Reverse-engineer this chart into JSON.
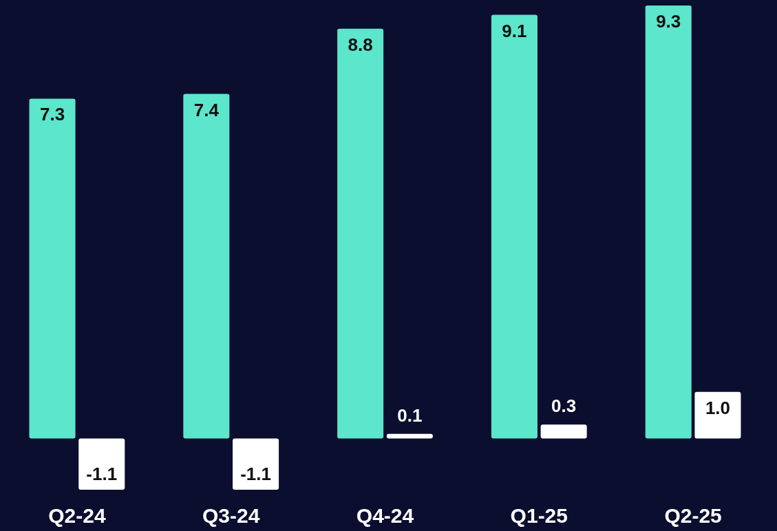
{
  "chart_data": {
    "type": "bar",
    "categories": [
      "Q2-24",
      "Q3-24",
      "Q4-24",
      "Q1-25",
      "Q2-25"
    ],
    "series": [
      {
        "color": "#5ce6cc",
        "values": [
          7.3,
          7.4,
          8.8,
          9.1,
          9.3
        ],
        "value_labels": [
          "7.3",
          "7.4",
          "8.8",
          "9.1",
          "9.3"
        ]
      },
      {
        "color": "#ffffff",
        "values": [
          -1.1,
          -1.1,
          0.1,
          0.3,
          1.0
        ],
        "value_labels": [
          "-1.1",
          "-1.1",
          "0.1",
          "0.3",
          "1.0"
        ]
      }
    ]
  }
}
